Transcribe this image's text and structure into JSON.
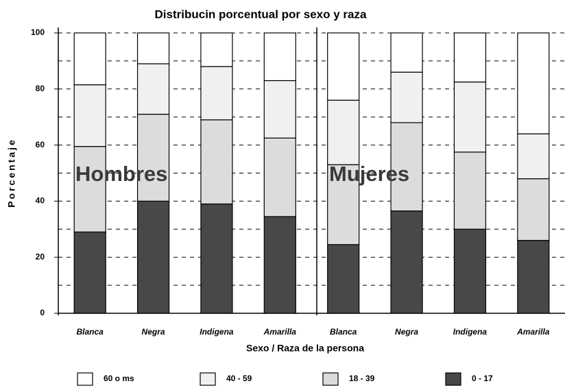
{
  "chart_data": {
    "type": "stacked_bar",
    "title": "Distribucin porcentual por sexo y raza",
    "x_label": "Sexo / Raza de la persona",
    "y_label": "Porcentaje",
    "categories": [
      "Blanca",
      "Negra",
      "Indigena",
      "Amarilla",
      "Blanca",
      "Negra",
      "Indigena",
      "Amarilla"
    ],
    "annotations": [
      "Hombres",
      "Mujeres"
    ],
    "series": [
      {
        "name": "0 - 17",
        "color": "#484848",
        "values": [
          29,
          40,
          39,
          34.5,
          24.5,
          36.5,
          30,
          26
        ]
      },
      {
        "name": "18 - 39",
        "color": "#dcdcdc",
        "values": [
          30.5,
          31,
          30,
          28,
          28.5,
          31.5,
          27.5,
          22
        ]
      },
      {
        "name": "40 - 59",
        "color": "#f0f0f0",
        "values": [
          22,
          18,
          19,
          20.5,
          23,
          18,
          25,
          16
        ]
      },
      {
        "name": "60 o ms",
        "color": "#ffffff",
        "values": [
          18.5,
          11,
          12,
          17,
          24,
          14,
          17.5,
          36
        ]
      }
    ],
    "ylim": [
      0,
      100
    ],
    "yticks": [
      0,
      20,
      40,
      60,
      80,
      100
    ],
    "minor_yticks": [
      10,
      30,
      50,
      70,
      90
    ],
    "grid": true
  }
}
